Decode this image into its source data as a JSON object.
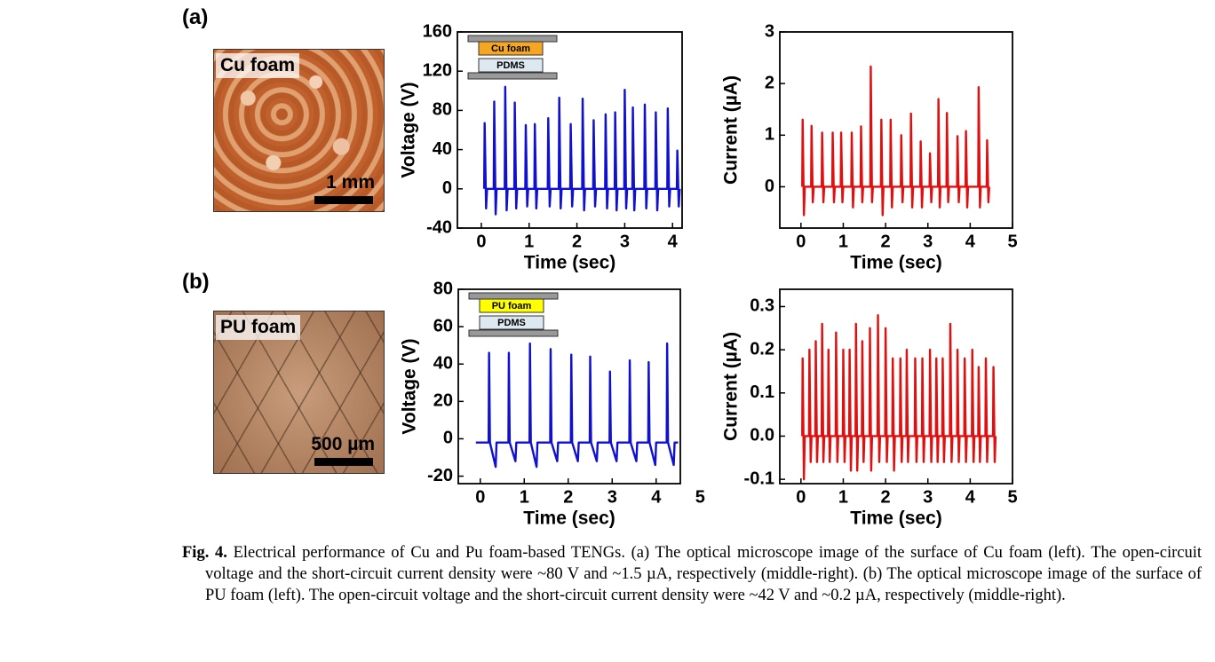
{
  "panels": [
    "(a)",
    "(b)"
  ],
  "images": [
    {
      "label": "Cu foam",
      "scale": "1 mm"
    },
    {
      "label": "PU foam",
      "scale": "500 µm"
    }
  ],
  "caption": {
    "label": "Fig. 4.",
    "text": "Electrical performance of Cu and Pu foam-based TENGs. (a) The optical microscope image of the surface of Cu foam (left). The open-circuit voltage and the short-circuit current density were ~80 V and ~1.5 µA, respectively (middle-right). (b) The optical microscope image of the surface of PU foam (left). The open-circuit voltage and the short-circuit current density were ~42 V and ~0.2 µA, respectively (middle-right)."
  },
  "chart_data": [
    {
      "type": "line",
      "xlabel": "Time (sec)",
      "ylabel": "Voltage (V)",
      "annotations": [
        "Cu foam",
        "PDMS"
      ],
      "xlim": [
        -0.5,
        4.2
      ],
      "xticks": [
        0,
        1,
        2,
        3,
        4
      ],
      "ylim": [
        -40,
        160
      ],
      "yticks": [
        -40,
        0,
        40,
        80,
        120,
        160
      ],
      "x": [
        0.06,
        0.07,
        0.1,
        0.12,
        0.26,
        0.27,
        0.3,
        0.32,
        0.49,
        0.5,
        0.53,
        0.55,
        0.69,
        0.7,
        0.73,
        0.75,
        0.92,
        0.93,
        0.96,
        0.98,
        1.11,
        1.12,
        1.15,
        1.17,
        1.39,
        1.4,
        1.43,
        1.45,
        1.62,
        1.63,
        1.66,
        1.68,
        1.86,
        1.87,
        1.9,
        1.92,
        2.11,
        2.12,
        2.15,
        2.17,
        2.34,
        2.35,
        2.38,
        2.4,
        2.59,
        2.6,
        2.63,
        2.65,
        2.79,
        2.8,
        2.83,
        2.85,
        2.99,
        3.0,
        3.03,
        3.05,
        3.16,
        3.17,
        3.2,
        3.22,
        3.41,
        3.42,
        3.45,
        3.47,
        3.64,
        3.65,
        3.68,
        3.7,
        3.89,
        3.9,
        3.93,
        3.95,
        4.09,
        4.1,
        4.13,
        4.15
      ],
      "series": [
        {
          "color": "#1010d0",
          "values": [
            0,
            67,
            -20,
            0,
            0,
            89,
            -26,
            0,
            0,
            104,
            -22,
            0,
            0,
            88,
            -20,
            0,
            0,
            65,
            -18,
            0,
            0,
            66,
            -20,
            0,
            0,
            72,
            -18,
            0,
            0,
            93,
            -20,
            0,
            0,
            66,
            -18,
            0,
            0,
            92,
            -22,
            0,
            0,
            70,
            -18,
            0,
            0,
            76,
            -20,
            0,
            0,
            78,
            -22,
            0,
            0,
            101,
            -20,
            0,
            0,
            83,
            -22,
            0,
            0,
            86,
            -20,
            0,
            0,
            78,
            -22,
            0,
            0,
            82,
            -18,
            0,
            0,
            39,
            -18,
            0
          ]
        }
      ]
    },
    {
      "type": "line",
      "xlabel": "Time (sec)",
      "ylabel": "Current (µA)",
      "xlim": [
        -0.5,
        5
      ],
      "xticks": [
        0,
        1,
        2,
        3,
        4,
        5
      ],
      "ylim": [
        -0.8,
        3
      ],
      "yticks": [
        0,
        1,
        2,
        3
      ],
      "x": [
        0.03,
        0.04,
        0.07,
        0.09,
        0.24,
        0.25,
        0.28,
        0.3,
        0.49,
        0.5,
        0.53,
        0.55,
        0.74,
        0.75,
        0.78,
        0.8,
        0.94,
        0.95,
        0.98,
        1.0,
        1.19,
        1.2,
        1.23,
        1.25,
        1.41,
        1.42,
        1.45,
        1.47,
        1.64,
        1.65,
        1.68,
        1.7,
        1.89,
        1.9,
        1.93,
        1.95,
        2.11,
        2.12,
        2.15,
        2.17,
        2.36,
        2.37,
        2.4,
        2.42,
        2.59,
        2.6,
        2.63,
        2.65,
        2.82,
        2.83,
        2.86,
        2.88,
        3.04,
        3.05,
        3.08,
        3.1,
        3.24,
        3.25,
        3.28,
        3.3,
        3.44,
        3.45,
        3.48,
        3.5,
        3.69,
        3.7,
        3.73,
        3.75,
        3.89,
        3.9,
        3.93,
        3.95,
        4.19,
        4.2,
        4.23,
        4.25,
        4.39,
        4.4,
        4.43,
        4.45
      ],
      "series": [
        {
          "color": "#e01010",
          "values": [
            0,
            1.3,
            -0.55,
            0,
            0,
            1.18,
            -0.3,
            0,
            0,
            1.05,
            -0.3,
            0,
            0,
            1.05,
            -0.3,
            0,
            0,
            1.05,
            -0.3,
            0,
            0,
            1.05,
            -0.4,
            0,
            0,
            1.17,
            -0.3,
            0,
            0,
            2.33,
            -0.3,
            0,
            0,
            1.3,
            -0.55,
            0,
            0,
            1.3,
            -0.4,
            0,
            0,
            1.0,
            -0.3,
            0,
            0,
            1.42,
            -0.4,
            0,
            0,
            0.88,
            -0.4,
            0,
            0,
            0.65,
            -0.3,
            0,
            0,
            1.7,
            -0.4,
            0,
            0,
            1.43,
            -0.3,
            0,
            0,
            0.98,
            -0.3,
            0,
            0,
            1.08,
            -0.4,
            0,
            0,
            1.93,
            -0.4,
            0,
            0,
            0.9,
            -0.3,
            0
          ]
        }
      ]
    },
    {
      "type": "line",
      "xlabel": "Time (sec)",
      "ylabel": "Voltage (V)",
      "annotations": [
        "PU foam",
        "PDMS"
      ],
      "xlim": [
        -0.5,
        4.55
      ],
      "xticks": [
        0,
        1,
        2,
        3,
        4,
        5
      ],
      "ylim": [
        -24,
        80
      ],
      "yticks": [
        -20,
        0,
        20,
        40,
        60,
        80
      ],
      "x": [
        -0.1,
        0.19,
        0.2,
        0.22,
        0.35,
        0.37,
        0.64,
        0.65,
        0.67,
        0.8,
        0.82,
        1.12,
        1.13,
        1.15,
        1.28,
        1.3,
        1.59,
        1.6,
        1.62,
        1.75,
        1.77,
        2.06,
        2.07,
        2.09,
        2.22,
        2.24,
        2.49,
        2.5,
        2.52,
        2.65,
        2.67,
        2.94,
        2.95,
        2.97,
        3.1,
        3.12,
        3.39,
        3.4,
        3.42,
        3.55,
        3.57,
        3.82,
        3.83,
        3.85,
        3.98,
        4.0,
        4.24,
        4.25,
        4.27,
        4.4,
        4.42,
        4.5
      ],
      "series": [
        {
          "color": "#1010d0",
          "values": [
            -2,
            -2,
            46,
            -2,
            -15,
            -2,
            -2,
            46,
            -2,
            -12,
            -2,
            -2,
            51,
            -2,
            -15,
            -2,
            -2,
            48,
            -2,
            -12,
            -2,
            -2,
            45,
            -2,
            -12,
            -2,
            -2,
            44,
            -2,
            -12,
            -2,
            -2,
            36,
            -2,
            -12,
            -2,
            -2,
            42,
            -2,
            -12,
            -2,
            -2,
            41,
            -2,
            -14,
            -2,
            -2,
            51,
            -2,
            -14,
            -2,
            -2
          ]
        }
      ]
    },
    {
      "type": "line",
      "xlabel": "Time (sec)",
      "ylabel": "Current (µA)",
      "xlim": [
        -0.5,
        5
      ],
      "xticks": [
        0,
        1,
        2,
        3,
        4,
        5
      ],
      "ylim": [
        -0.11,
        0.34
      ],
      "yticks": [
        -0.1,
        {
          "value": 0,
          "label": "0.0"
        },
        0.1,
        0.2,
        0.3
      ],
      "x": [
        0.03,
        0.04,
        0.07,
        0.09,
        0.19,
        0.2,
        0.23,
        0.25,
        0.34,
        0.35,
        0.38,
        0.4,
        0.49,
        0.5,
        0.53,
        0.55,
        0.64,
        0.65,
        0.68,
        0.7,
        0.82,
        0.83,
        0.86,
        0.88,
        0.99,
        1.0,
        1.03,
        1.05,
        1.14,
        1.15,
        1.18,
        1.2,
        1.29,
        1.3,
        1.33,
        1.35,
        1.44,
        1.45,
        1.48,
        1.5,
        1.62,
        1.63,
        1.66,
        1.68,
        1.81,
        1.82,
        1.85,
        1.87,
        1.99,
        2.0,
        2.03,
        2.05,
        2.16,
        2.17,
        2.2,
        2.22,
        2.34,
        2.35,
        2.38,
        2.4,
        2.49,
        2.5,
        2.53,
        2.55,
        2.69,
        2.7,
        2.73,
        2.75,
        2.86,
        2.87,
        2.9,
        2.92,
        3.04,
        3.05,
        3.08,
        3.1,
        3.19,
        3.2,
        3.23,
        3.25,
        3.34,
        3.35,
        3.38,
        3.4,
        3.52,
        3.53,
        3.56,
        3.58,
        3.69,
        3.7,
        3.73,
        3.75,
        3.86,
        3.87,
        3.9,
        3.92,
        4.04,
        4.05,
        4.08,
        4.1,
        4.19,
        4.2,
        4.23,
        4.25,
        4.36,
        4.37,
        4.4,
        4.42,
        4.54,
        4.55,
        4.58,
        4.6
      ],
      "series": [
        {
          "color": "#e01010",
          "values": [
            0,
            0.18,
            -0.1,
            0,
            0,
            0.2,
            -0.06,
            0,
            0,
            0.22,
            -0.06,
            0,
            0,
            0.26,
            -0.06,
            0,
            0,
            0.2,
            -0.06,
            0,
            0,
            0.24,
            -0.06,
            0,
            0,
            0.2,
            -0.06,
            0,
            0,
            0.2,
            -0.08,
            0,
            0,
            0.26,
            -0.08,
            0,
            0,
            0.22,
            -0.06,
            0,
            0,
            0.25,
            -0.08,
            0,
            0,
            0.28,
            -0.06,
            0,
            0,
            0.25,
            -0.06,
            0,
            0,
            0.18,
            -0.08,
            0,
            0,
            0.18,
            -0.06,
            0,
            0,
            0.2,
            -0.06,
            0,
            0,
            0.18,
            -0.06,
            0,
            0,
            0.18,
            -0.06,
            0,
            0,
            0.2,
            -0.06,
            0,
            0,
            0.18,
            -0.06,
            0,
            0,
            0.18,
            -0.06,
            0,
            0,
            0.26,
            -0.06,
            0,
            0,
            0.2,
            -0.06,
            0,
            0,
            0.18,
            -0.06,
            0,
            0,
            0.2,
            -0.06,
            0,
            0,
            0.16,
            -0.06,
            0,
            0,
            0.18,
            -0.06,
            0,
            0,
            0.16,
            -0.06,
            0
          ]
        }
      ]
    }
  ]
}
